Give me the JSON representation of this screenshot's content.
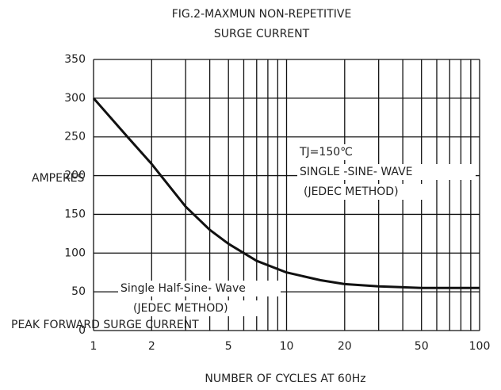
{
  "chart_data": {
    "type": "line",
    "title": [
      "FIG.2-MAXMUN NON-REPETITIVE",
      "SURGE CURRENT"
    ],
    "ylabel": [
      "AMPERES",
      "PEAK FORWARD SURGE CURRENT"
    ],
    "xlabel": "NUMBER OF CYCLES AT 60Hz",
    "xlog": true,
    "xlim": [
      1,
      100
    ],
    "ylim": [
      0,
      350
    ],
    "xticks": [
      1,
      2,
      5,
      10,
      20,
      50,
      100
    ],
    "xminor": [
      3,
      4,
      6,
      7,
      8,
      9,
      30,
      40,
      60,
      70,
      80,
      90
    ],
    "yticks": [
      0,
      50,
      100,
      150,
      200,
      250,
      300,
      350
    ],
    "grid": true,
    "series": [
      {
        "color": "#111111",
        "x": [
          1,
          1.5,
          2,
          3,
          4,
          5,
          7,
          10,
          15,
          20,
          30,
          50,
          100
        ],
        "values": [
          300,
          250,
          215,
          160,
          130,
          112,
          90,
          75,
          65,
          60,
          57,
          55,
          55
        ]
      }
    ],
    "annotations": [
      "TJ=150℃",
      "SINGLE -SINE- WAVE",
      "(JEDEC METHOD)",
      "Single Half-Sine- Wave",
      "(JEDEC METHOD)"
    ]
  }
}
